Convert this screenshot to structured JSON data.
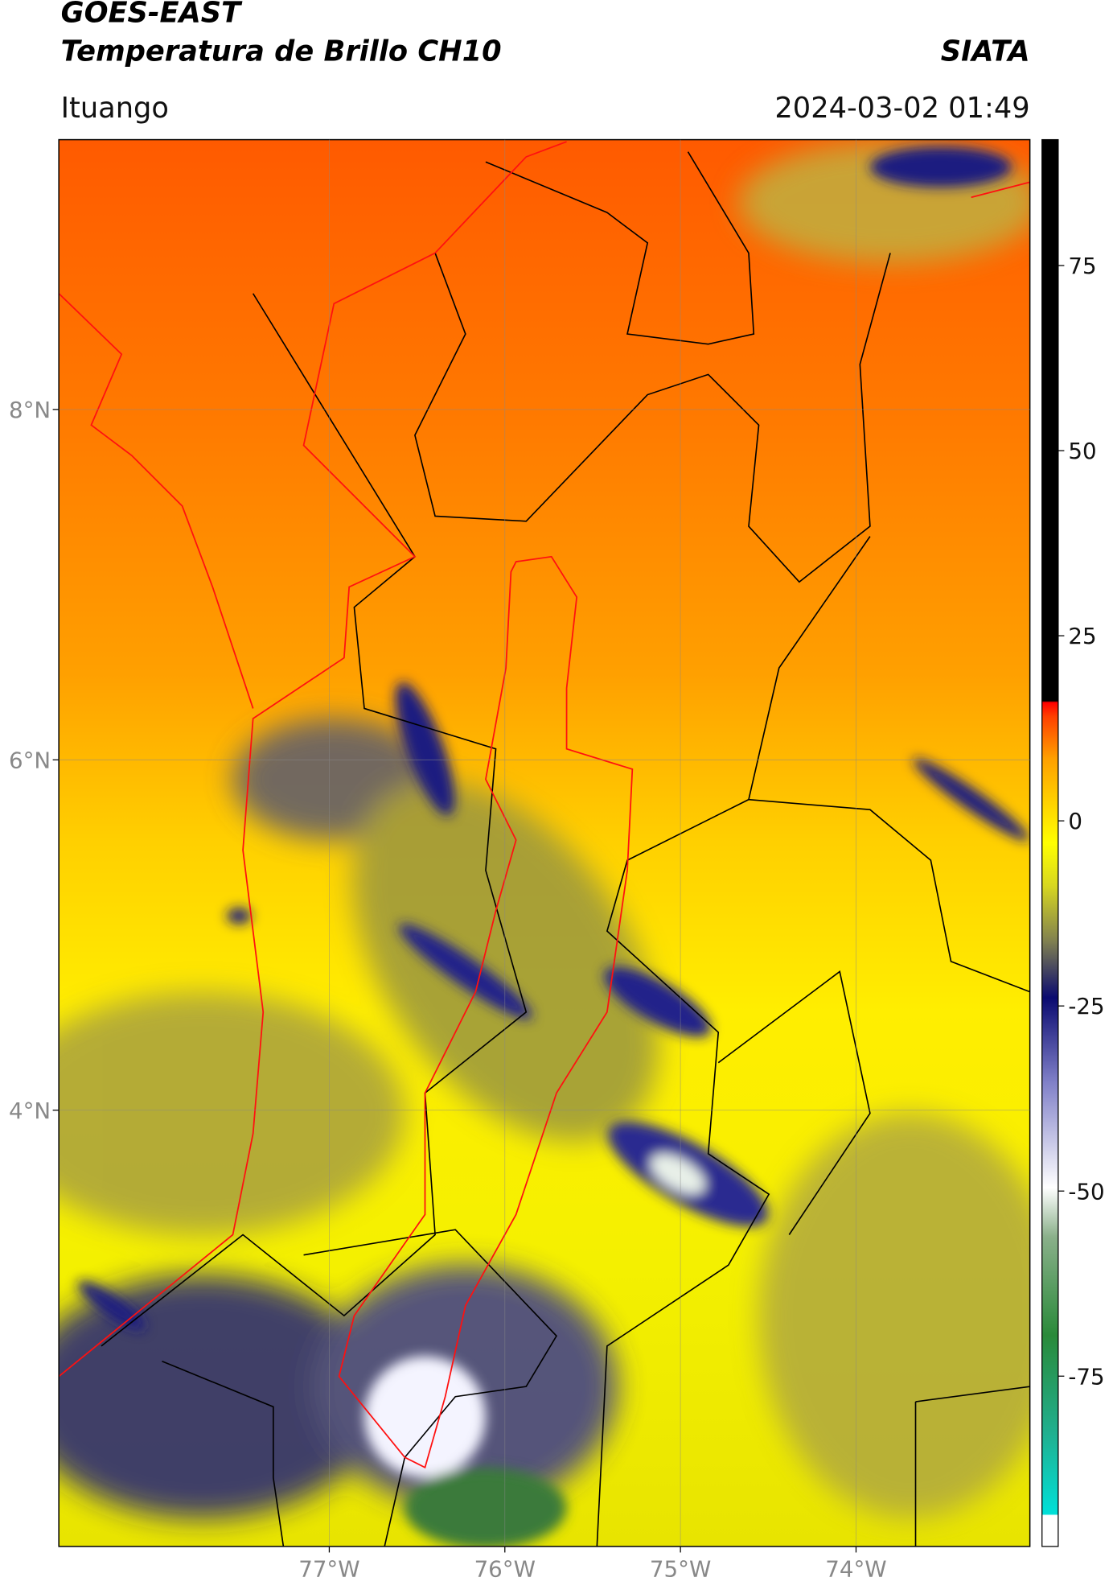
{
  "header": {
    "title": "GOES-EAST",
    "subtitle": "Temperatura de Brillo CH10",
    "source": "SIATA",
    "location": "Ituango",
    "datetime": "2024-03-02 01:49"
  },
  "map": {
    "xlim": [
      -78.54,
      -73.01
    ],
    "ylim": [
      1.51,
      9.54
    ],
    "xticks": [
      {
        "value": -77,
        "label": "77°W"
      },
      {
        "value": -76,
        "label": "76°W"
      },
      {
        "value": -75,
        "label": "75°W"
      },
      {
        "value": -74,
        "label": "74°W"
      }
    ],
    "yticks": [
      {
        "value": 4,
        "label": "4°N"
      },
      {
        "value": 6,
        "label": "6°N"
      },
      {
        "value": 8,
        "label": "8°N"
      }
    ],
    "grid": true
  },
  "colorbar": {
    "lim": [
      -98,
      92
    ],
    "ticks": [
      -75,
      -50,
      -25,
      0,
      25,
      50,
      75
    ]
  }
}
